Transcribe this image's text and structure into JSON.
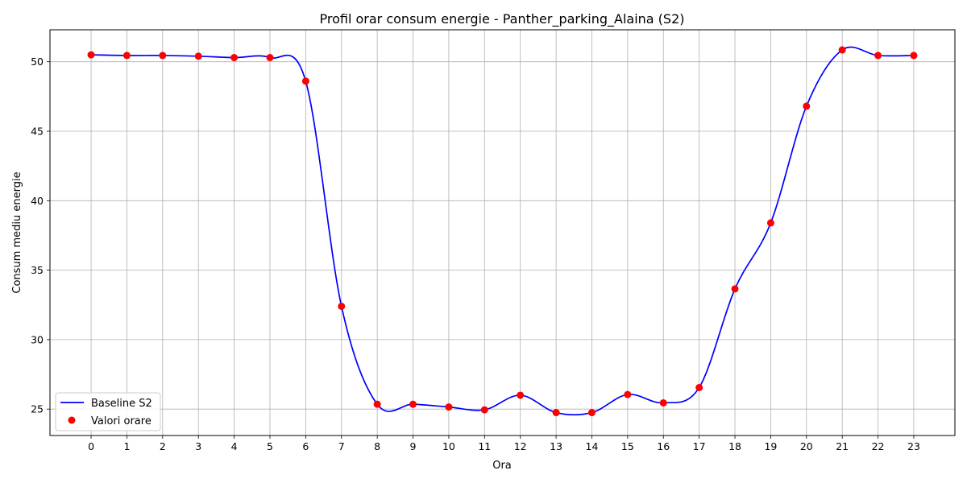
{
  "chart_data": {
    "type": "line",
    "title": "Profil orar consum energie - Panther_parking_Alaina (S2)",
    "xlabel": "Ora",
    "ylabel": "Consum mediu energie",
    "x": [
      0,
      1,
      2,
      3,
      4,
      5,
      6,
      7,
      8,
      9,
      10,
      11,
      12,
      13,
      14,
      15,
      16,
      17,
      18,
      19,
      20,
      21,
      22,
      23
    ],
    "x_ticks": [
      "0",
      "1",
      "2",
      "3",
      "4",
      "5",
      "6",
      "7",
      "8",
      "9",
      "10",
      "11",
      "12",
      "13",
      "14",
      "15",
      "16",
      "17",
      "18",
      "19",
      "20",
      "21",
      "22",
      "23"
    ],
    "y_ticks": [
      "25",
      "30",
      "35",
      "40",
      "45",
      "50"
    ],
    "xlim": [
      -1.15,
      24.15
    ],
    "ylim": [
      23.1,
      52.3
    ],
    "grid": true,
    "legend_position": "lower-left",
    "series": [
      {
        "name": "Baseline S2",
        "kind": "smooth-line",
        "color": "#0000ff",
        "values": [
          50.5,
          50.45,
          50.45,
          50.4,
          50.3,
          50.3,
          48.6,
          32.4,
          25.35,
          25.35,
          25.15,
          24.95,
          26.0,
          24.75,
          24.75,
          26.05,
          25.45,
          26.55,
          33.65,
          38.4,
          46.8,
          50.85,
          50.45,
          50.45
        ]
      },
      {
        "name": "Valori orare",
        "kind": "scatter",
        "color": "#ff0000",
        "values": [
          50.5,
          50.45,
          50.45,
          50.4,
          50.3,
          50.3,
          48.6,
          32.4,
          25.35,
          25.35,
          25.15,
          24.95,
          26.0,
          24.75,
          24.75,
          26.05,
          25.45,
          26.55,
          33.65,
          38.4,
          46.8,
          50.85,
          50.45,
          50.45
        ]
      }
    ]
  }
}
